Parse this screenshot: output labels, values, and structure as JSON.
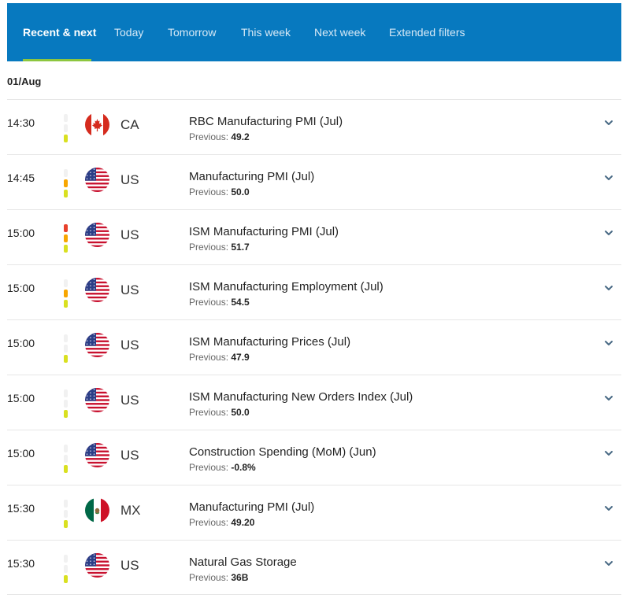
{
  "tabs": [
    "Recent & next",
    "Today",
    "Tomorrow",
    "This week",
    "Next week",
    "Extended filters"
  ],
  "active_tab": "Recent & next",
  "date_header": "01/Aug",
  "previous_label": "Previous:",
  "impact_colors": {
    "low": "#d9e021",
    "medium": "#f7a600",
    "high": "#e8412c",
    "off": "#f1f1f1"
  },
  "events": [
    {
      "time": "14:30",
      "country": "CA",
      "flag": "canada-flag-icon",
      "name": "RBC Manufacturing PMI (Jul)",
      "previous": "49.2",
      "impact": "low"
    },
    {
      "time": "14:45",
      "country": "US",
      "flag": "us-flag-icon",
      "name": "Manufacturing PMI (Jul)",
      "previous": "50.0",
      "impact": "medium"
    },
    {
      "time": "15:00",
      "country": "US",
      "flag": "us-flag-icon",
      "name": "ISM Manufacturing PMI (Jul)",
      "previous": "51.7",
      "impact": "high"
    },
    {
      "time": "15:00",
      "country": "US",
      "flag": "us-flag-icon",
      "name": "ISM Manufacturing Employment (Jul)",
      "previous": "54.5",
      "impact": "medium"
    },
    {
      "time": "15:00",
      "country": "US",
      "flag": "us-flag-icon",
      "name": "ISM Manufacturing Prices (Jul)",
      "previous": "47.9",
      "impact": "low"
    },
    {
      "time": "15:00",
      "country": "US",
      "flag": "us-flag-icon",
      "name": "ISM Manufacturing New Orders Index (Jul)",
      "previous": "50.0",
      "impact": "low"
    },
    {
      "time": "15:00",
      "country": "US",
      "flag": "us-flag-icon",
      "name": "Construction Spending (MoM) (Jun)",
      "previous": "-0.8%",
      "impact": "low"
    },
    {
      "time": "15:30",
      "country": "MX",
      "flag": "mexico-flag-icon",
      "name": "Manufacturing PMI (Jul)",
      "previous": "49.20",
      "impact": "low"
    },
    {
      "time": "15:30",
      "country": "US",
      "flag": "us-flag-icon",
      "name": "Natural Gas Storage",
      "previous": "36B",
      "impact": "low"
    }
  ]
}
